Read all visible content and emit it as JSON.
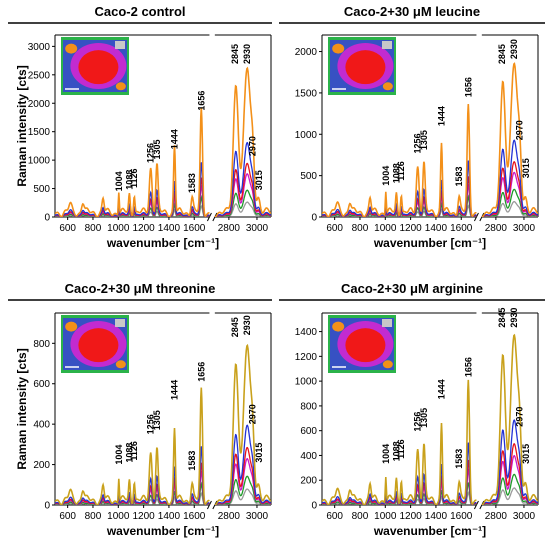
{
  "colors": {
    "orange": "#f39019",
    "gold": "#c9a11c",
    "blue": "#2433d6",
    "red": "#e8141a",
    "magenta": "#cc18c8",
    "green": "#1f9a2a",
    "gray": "#9a9a9a",
    "axis": "#000000"
  },
  "chart_data": [
    {
      "type": "line",
      "title": "Caco-2 control",
      "ylabel": "Raman intensity [cts]",
      "xlabel": "wavenumber [cm⁻¹]",
      "ylim": [
        0,
        3200
      ],
      "yticks": [
        0,
        500,
        1000,
        1500,
        2000,
        2500,
        3000
      ],
      "xticks": [
        600,
        800,
        1000,
        1200,
        1400,
        1600,
        2800,
        3000
      ],
      "scale": 2650,
      "inset": true,
      "peaks": [
        {
          "label": "1004",
          "x": 1004,
          "y": 380
        },
        {
          "label": "1088",
          "x": 1088,
          "y": 410
        },
        {
          "label": "1126",
          "x": 1126,
          "y": 440
        },
        {
          "label": "1256",
          "x": 1256,
          "y": 880
        },
        {
          "label": "1305",
          "x": 1305,
          "y": 940
        },
        {
          "label": "1444",
          "x": 1444,
          "y": 1120
        },
        {
          "label": "1583",
          "x": 1583,
          "y": 350
        },
        {
          "label": "1656",
          "x": 1656,
          "y": 1800
        },
        {
          "label": "2845",
          "x": 2845,
          "y": 2620
        },
        {
          "label": "2930",
          "x": 2930,
          "y": 2620
        },
        {
          "label": "2970",
          "x": 2970,
          "y": 1000
        },
        {
          "label": "3015",
          "x": 3015,
          "y": 400
        }
      ]
    },
    {
      "type": "line",
      "title": "Caco-2+30 μM leucine",
      "ylabel": "",
      "xlabel": "wavenumber [cm⁻¹]",
      "ylim": [
        0,
        2200
      ],
      "yticks": [
        0,
        500,
        1000,
        1500,
        2000
      ],
      "xticks": [
        600,
        800,
        1000,
        1200,
        1400,
        1600,
        2800,
        3000
      ],
      "scale": 1880,
      "inset": true,
      "peaks": [
        {
          "label": "1004",
          "x": 1004,
          "y": 330
        },
        {
          "label": "1088",
          "x": 1088,
          "y": 360
        },
        {
          "label": "1126",
          "x": 1126,
          "y": 390
        },
        {
          "label": "1256",
          "x": 1256,
          "y": 720
        },
        {
          "label": "1305",
          "x": 1305,
          "y": 760
        },
        {
          "label": "1444",
          "x": 1444,
          "y": 1050
        },
        {
          "label": "1583",
          "x": 1583,
          "y": 320
        },
        {
          "label": "1656",
          "x": 1656,
          "y": 1400
        },
        {
          "label": "2845",
          "x": 2845,
          "y": 1800
        },
        {
          "label": "2930",
          "x": 2930,
          "y": 1860
        },
        {
          "label": "2970",
          "x": 2970,
          "y": 880
        },
        {
          "label": "3015",
          "x": 3015,
          "y": 420
        }
      ]
    },
    {
      "type": "line",
      "title": "Caco-2+30 μM threonine",
      "ylabel": "Raman intensity [cts]",
      "xlabel": "wavenumber [cm⁻¹]",
      "ylim": [
        0,
        950
      ],
      "yticks": [
        0,
        200,
        400,
        600,
        800
      ],
      "xticks": [
        600,
        800,
        1000,
        1200,
        1400,
        1600,
        2800,
        3000
      ],
      "scale": 800,
      "inset": true,
      "peaks": [
        {
          "label": "1004",
          "x": 1004,
          "y": 180
        },
        {
          "label": "1088",
          "x": 1088,
          "y": 190
        },
        {
          "label": "1126",
          "x": 1126,
          "y": 200
        },
        {
          "label": "1256",
          "x": 1256,
          "y": 330
        },
        {
          "label": "1305",
          "x": 1305,
          "y": 350
        },
        {
          "label": "1444",
          "x": 1444,
          "y": 500
        },
        {
          "label": "1583",
          "x": 1583,
          "y": 150
        },
        {
          "label": "1656",
          "x": 1656,
          "y": 590
        },
        {
          "label": "2845",
          "x": 2845,
          "y": 810
        },
        {
          "label": "2930",
          "x": 2930,
          "y": 820
        },
        {
          "label": "2970",
          "x": 2970,
          "y": 380
        },
        {
          "label": "3015",
          "x": 3015,
          "y": 190
        }
      ]
    },
    {
      "type": "line",
      "title": "Caco-2+30 μM arginine",
      "ylabel": "",
      "xlabel": "wavenumber [cm⁻¹]",
      "ylim": [
        0,
        1550
      ],
      "yticks": [
        0,
        200,
        400,
        600,
        800,
        1000,
        1200,
        1400
      ],
      "xticks": [
        600,
        800,
        1000,
        1200,
        1400,
        1600,
        2800,
        3000
      ],
      "scale": 1390,
      "inset": true,
      "peaks": [
        {
          "label": "1004",
          "x": 1004,
          "y": 300
        },
        {
          "label": "1088",
          "x": 1088,
          "y": 320
        },
        {
          "label": "1126",
          "x": 1126,
          "y": 340
        },
        {
          "label": "1256",
          "x": 1256,
          "y": 560
        },
        {
          "label": "1305",
          "x": 1305,
          "y": 590
        },
        {
          "label": "1444",
          "x": 1444,
          "y": 820
        },
        {
          "label": "1583",
          "x": 1583,
          "y": 260
        },
        {
          "label": "1656",
          "x": 1656,
          "y": 1000
        },
        {
          "label": "2845",
          "x": 2845,
          "y": 1400
        },
        {
          "label": "2930",
          "x": 2930,
          "y": 1400
        },
        {
          "label": "2970",
          "x": 2970,
          "y": 600
        },
        {
          "label": "3015",
          "x": 3015,
          "y": 300
        }
      ]
    }
  ]
}
